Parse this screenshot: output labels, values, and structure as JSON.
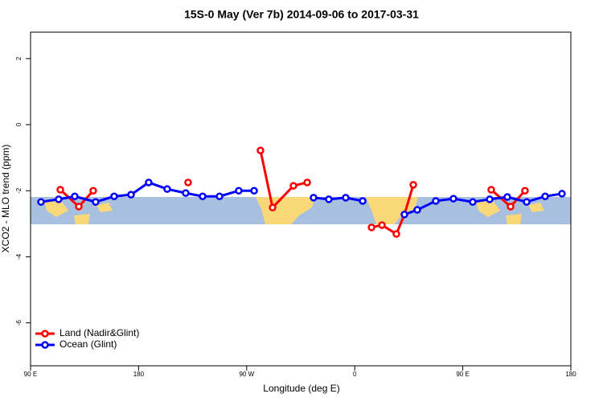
{
  "chart_data": {
    "type": "line",
    "title": "15S-0 May (Ver 7b)   2014-09-06 to 2017-03-31",
    "x_label": "Longitude (deg E)",
    "y_label": "XCO2 - MLO trend (ppm)",
    "xlim": [
      90,
      540
    ],
    "ylim": [
      -7.3,
      2.8
    ],
    "xticks": [
      {
        "value": 90,
        "label": "90 E"
      },
      180,
      {
        "value": 270,
        "label": "90 W"
      },
      {
        "value": 360,
        "label": "0"
      },
      {
        "value": 450,
        "label": "90 E"
      },
      {
        "value": 540,
        "label": "180"
      }
    ],
    "yticks": [
      2,
      0,
      -2,
      -4,
      -6
    ],
    "legend": "bottom-left",
    "series": [
      {
        "name": "Land (Nadir&Glint)",
        "color": "#ff0000",
        "x": [
          114.8,
          130.2,
          142.2,
          null,
          221.2,
          null,
          281.5,
          291.6,
          309.0,
          320.4,
          null,
          374.0,
          382.7,
          394.7,
          401.4,
          408.8,
          null,
          473.7,
          489.8,
          501.8
        ],
        "values": [
          -1.97,
          -2.48,
          -2.0,
          null,
          -1.75,
          null,
          -0.78,
          -2.51,
          -1.85,
          -1.75,
          null,
          -3.11,
          -3.04,
          -3.31,
          -2.72,
          -1.82,
          null,
          -1.97,
          -2.48,
          -2.0
        ]
      },
      {
        "name": "Ocean (Glint)",
        "color": "#0000ff",
        "x": [
          98.7,
          113.4,
          126.8,
          144.2,
          159.6,
          173.7,
          188.4,
          203.8,
          219.2,
          233.3,
          247.4,
          263.4,
          276.2,
          null,
          325.7,
          338.4,
          352.5,
          366.6,
          null,
          401.4,
          412.1,
          427.5,
          442.2,
          458.3,
          472.4,
          487.1,
          503.2,
          518.6,
          532.6
        ],
        "values": [
          -2.34,
          -2.26,
          -2.17,
          -2.34,
          -2.17,
          -2.12,
          -1.75,
          -1.95,
          -2.07,
          -2.17,
          -2.17,
          -2.0,
          -2.0,
          null,
          -2.21,
          -2.26,
          -2.21,
          -2.31,
          null,
          -2.72,
          -2.58,
          -2.31,
          -2.24,
          -2.34,
          -2.26,
          -2.19,
          -2.34,
          -2.17,
          -2.09
        ]
      }
    ]
  }
}
